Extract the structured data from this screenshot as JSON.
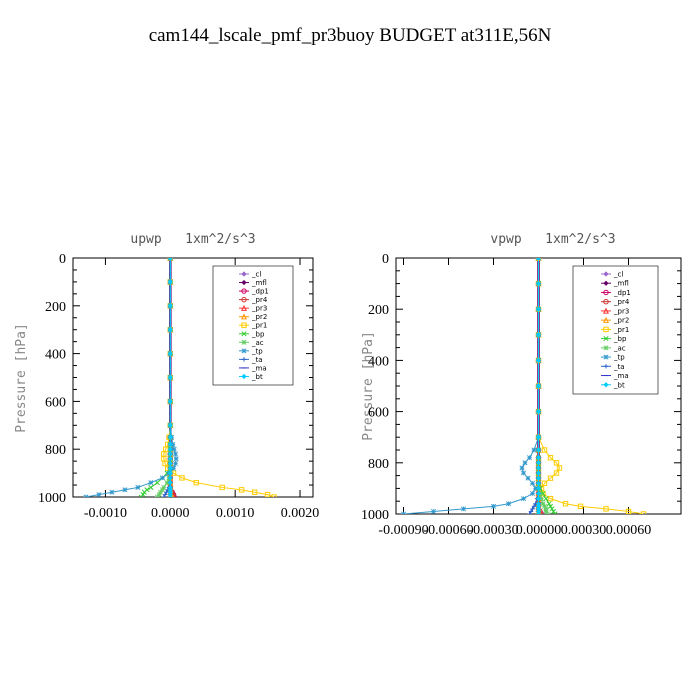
{
  "title": "cam144_lscale_pmf_pr3buoy  BUDGET at311E,56N",
  "chart_data": [
    {
      "type": "line",
      "title": "upwp   1xm^2/s^3",
      "ylabel": "Pressure [hPa]",
      "ylim": [
        0,
        1000
      ],
      "y_inverted": true,
      "xlim": [
        -0.0015,
        0.0022
      ],
      "xticks": [
        -0.001,
        0,
        0.001,
        0.002
      ],
      "xtick_labels": [
        "-0.0010",
        "0.0000",
        "0.0010",
        "0.0020"
      ],
      "yticks": [
        0,
        200,
        400,
        600,
        800,
        1000
      ],
      "ytick_labels": [
        "0",
        "200",
        "400",
        "600",
        "800",
        "1000"
      ],
      "legend_position": "top-right",
      "y": [
        0,
        100,
        200,
        300,
        400,
        500,
        600,
        700,
        750,
        780,
        800,
        820,
        840,
        860,
        880,
        900,
        920,
        940,
        960,
        970,
        980,
        990,
        1000
      ],
      "series": [
        {
          "name": "_cl",
          "color": "#9966cc",
          "marker": "diamond",
          "values": [
            0,
            0,
            0,
            0,
            0,
            0,
            0,
            0,
            0,
            0,
            0,
            0,
            0,
            0,
            0,
            0,
            0,
            0,
            0,
            0,
            0,
            0,
            0
          ]
        },
        {
          "name": "_mfl",
          "color": "#660066",
          "marker": "diamond",
          "values": [
            0,
            0,
            0,
            0,
            0,
            0,
            0,
            0,
            0,
            0,
            0,
            0,
            0,
            0,
            0,
            0,
            0,
            0,
            0,
            0,
            0,
            0,
            0
          ]
        },
        {
          "name": "_dp1",
          "color": "#cc0066",
          "marker": "circle",
          "values": [
            0,
            0,
            0,
            0,
            0,
            0,
            0,
            0,
            0,
            0,
            0,
            0,
            0,
            0,
            0,
            0,
            0,
            0,
            0,
            0,
            3e-05,
            5e-05,
            6e-05
          ]
        },
        {
          "name": "_pr4",
          "color": "#cc3333",
          "marker": "circle",
          "values": [
            0,
            0,
            0,
            0,
            0,
            0,
            0,
            0,
            0,
            0,
            0,
            0,
            0,
            0,
            0,
            0,
            0,
            0,
            0,
            0,
            2e-05,
            4e-05,
            5e-05
          ]
        },
        {
          "name": "_pr3",
          "color": "#ff3333",
          "marker": "triangle",
          "values": [
            0,
            0,
            0,
            0,
            0,
            0,
            0,
            0,
            0,
            0,
            0,
            0,
            0,
            0,
            0,
            0,
            0,
            0,
            0,
            0,
            0,
            2e-05,
            3e-05
          ]
        },
        {
          "name": "_pr2",
          "color": "#ff9900",
          "marker": "triangle",
          "values": [
            0,
            0,
            0,
            0,
            0,
            0,
            0,
            0,
            0,
            0,
            0,
            0,
            0,
            0,
            0,
            0,
            0,
            0,
            0,
            0,
            0,
            2e-05,
            3e-05
          ]
        },
        {
          "name": "_pr1",
          "color": "#ffcc00",
          "marker": "square",
          "values": [
            0,
            0,
            0,
            0,
            0,
            0,
            0,
            0,
            -2e-05,
            -4e-05,
            -7e-05,
            -0.0001,
            -0.0001,
            -8e-05,
            -4e-05,
            5e-05,
            0.00018,
            0.0004,
            0.0008,
            0.0011,
            0.0013,
            0.0015,
            0.0016
          ]
        },
        {
          "name": "_bp",
          "color": "#33cc33",
          "marker": "x",
          "values": [
            0,
            0,
            0,
            0,
            0,
            0,
            0,
            0,
            0,
            0,
            0,
            0,
            0,
            0,
            0,
            -5e-05,
            -0.00012,
            -0.0002,
            -0.0003,
            -0.00036,
            -0.0004,
            -0.00042,
            -0.00045
          ]
        },
        {
          "name": "_ac",
          "color": "#66cc66",
          "marker": "star",
          "values": [
            0,
            0,
            0,
            0,
            0,
            0,
            0,
            0,
            0,
            0,
            0,
            0,
            0,
            0,
            0,
            0,
            -2e-05,
            -5e-05,
            -0.0001,
            -0.00012,
            -0.00015,
            -0.00017,
            -0.0002
          ]
        },
        {
          "name": "_tp",
          "color": "#3399cc",
          "marker": "star",
          "values": [
            0,
            0,
            0,
            0,
            0,
            0,
            0,
            0,
            2e-05,
            4e-05,
            6e-05,
            8e-05,
            9e-05,
            8e-05,
            5e-05,
            -2e-05,
            -0.00012,
            -0.0003,
            -0.0005,
            -0.0007,
            -0.0009,
            -0.0011,
            -0.0013
          ]
        },
        {
          "name": "_ta",
          "color": "#3366cc",
          "marker": "plus",
          "values": [
            0,
            0,
            0,
            0,
            0,
            0,
            0,
            0,
            0,
            0,
            0,
            0,
            0,
            0,
            0,
            0,
            0,
            0,
            -2e-05,
            -4e-05,
            -6e-05,
            -8e-05,
            -0.0001
          ]
        },
        {
          "name": "_ma",
          "color": "#3333cc",
          "marker": "dash",
          "values": [
            0,
            0,
            0,
            0,
            0,
            0,
            0,
            0,
            0,
            0,
            0,
            0,
            0,
            0,
            0,
            0,
            0,
            0,
            0,
            0,
            0,
            0,
            0
          ]
        },
        {
          "name": "_bt",
          "color": "#00ccff",
          "marker": "diamond",
          "values": [
            0,
            0,
            0,
            0,
            0,
            0,
            0,
            0,
            0,
            0,
            0,
            0,
            0,
            0,
            0,
            0,
            0,
            0,
            0,
            0,
            0,
            0,
            0
          ]
        }
      ]
    },
    {
      "type": "line",
      "title": "vpwp   1xm^2/s^3",
      "ylabel": "Pressure [hPa]",
      "ylim": [
        0,
        1000
      ],
      "y_inverted": true,
      "xlim": [
        -0.00095,
        0.00095
      ],
      "xticks": [
        -0.0009,
        -0.0006,
        -0.0003,
        0,
        0.0003,
        0.0006
      ],
      "xtick_labels": [
        "-0.00090",
        "-0.00060",
        "-0.00030",
        "0.00000",
        "0.00030",
        "0.00060"
      ],
      "yticks": [
        0,
        200,
        400,
        600,
        800,
        1000
      ],
      "ytick_labels": [
        "0",
        "200",
        "400",
        "600",
        "800",
        "1000"
      ],
      "legend_position": "top-right",
      "y": [
        0,
        100,
        200,
        300,
        400,
        500,
        600,
        700,
        750,
        780,
        800,
        820,
        840,
        860,
        880,
        900,
        920,
        940,
        960,
        970,
        980,
        990,
        1000
      ],
      "series": [
        {
          "name": "_cl",
          "color": "#9966cc",
          "marker": "diamond",
          "values": [
            0,
            0,
            0,
            0,
            0,
            0,
            0,
            0,
            0,
            0,
            0,
            0,
            0,
            0,
            0,
            0,
            0,
            0,
            0,
            0,
            0,
            0,
            0
          ]
        },
        {
          "name": "_mfl",
          "color": "#660066",
          "marker": "diamond",
          "values": [
            0,
            0,
            0,
            0,
            0,
            0,
            0,
            0,
            0,
            0,
            0,
            0,
            0,
            0,
            0,
            0,
            0,
            0,
            0,
            0,
            0,
            0,
            0
          ]
        },
        {
          "name": "_dp1",
          "color": "#cc0066",
          "marker": "circle",
          "values": [
            0,
            0,
            0,
            0,
            0,
            0,
            0,
            0,
            0,
            0,
            0,
            0,
            0,
            0,
            0,
            0,
            0,
            0,
            0,
            0,
            0,
            1e-05,
            2e-05
          ]
        },
        {
          "name": "_pr4",
          "color": "#cc3333",
          "marker": "circle",
          "values": [
            0,
            0,
            0,
            0,
            0,
            0,
            0,
            0,
            0,
            0,
            0,
            0,
            0,
            0,
            0,
            0,
            0,
            0,
            0,
            0,
            0,
            1e-05,
            1e-05
          ]
        },
        {
          "name": "_pr3",
          "color": "#ff3333",
          "marker": "triangle",
          "values": [
            0,
            0,
            0,
            0,
            0,
            0,
            0,
            0,
            0,
            0,
            0,
            0,
            0,
            0,
            0,
            0,
            0,
            0,
            0,
            0,
            0,
            0,
            1e-05
          ]
        },
        {
          "name": "_pr2",
          "color": "#ff9900",
          "marker": "triangle",
          "values": [
            0,
            0,
            0,
            0,
            0,
            0,
            0,
            0,
            0,
            0,
            0,
            0,
            0,
            0,
            0,
            0,
            0,
            0,
            0,
            0,
            0,
            0,
            1e-05
          ]
        },
        {
          "name": "_pr1",
          "color": "#ffcc00",
          "marker": "square",
          "values": [
            0,
            0,
            0,
            0,
            0,
            0,
            0,
            0,
            4e-05,
            8e-05,
            0.00012,
            0.00014,
            0.00012,
            8e-05,
            4e-05,
            2e-05,
            3e-05,
            8e-05,
            0.00018,
            0.00028,
            0.00045,
            0.0006,
            0.0007
          ]
        },
        {
          "name": "_bp",
          "color": "#33cc33",
          "marker": "x",
          "values": [
            0,
            0,
            0,
            0,
            0,
            0,
            0,
            0,
            0,
            0,
            0,
            0,
            0,
            0,
            0,
            1e-05,
            3e-05,
            5e-05,
            7e-05,
            8e-05,
            9e-05,
            0.0001,
            0.00011
          ]
        },
        {
          "name": "_ac",
          "color": "#66cc66",
          "marker": "star",
          "values": [
            0,
            0,
            0,
            0,
            0,
            0,
            0,
            0,
            0,
            0,
            0,
            0,
            0,
            0,
            0,
            0,
            1e-05,
            2e-05,
            3e-05,
            4e-05,
            5e-05,
            5e-05,
            6e-05
          ]
        },
        {
          "name": "_tp",
          "color": "#3399cc",
          "marker": "star",
          "values": [
            0,
            0,
            0,
            0,
            0,
            0,
            0,
            0,
            -3e-05,
            -6e-05,
            -9e-05,
            -0.00011,
            -0.0001,
            -7e-05,
            -4e-05,
            -2e-05,
            -4e-05,
            -0.0001,
            -0.0002,
            -0.0003,
            -0.0005,
            -0.0007,
            -0.0009
          ]
        },
        {
          "name": "_ta",
          "color": "#3366cc",
          "marker": "plus",
          "values": [
            0,
            0,
            0,
            0,
            0,
            0,
            0,
            0,
            0,
            0,
            0,
            0,
            0,
            0,
            0,
            0,
            0,
            -1e-05,
            -2e-05,
            -3e-05,
            -4e-05,
            -5e-05,
            -6e-05
          ]
        },
        {
          "name": "_ma",
          "color": "#3333cc",
          "marker": "dash",
          "values": [
            0,
            0,
            0,
            0,
            0,
            0,
            0,
            0,
            0,
            0,
            0,
            0,
            0,
            0,
            0,
            0,
            0,
            0,
            0,
            0,
            0,
            0,
            0
          ]
        },
        {
          "name": "_bt",
          "color": "#00ccff",
          "marker": "diamond",
          "values": [
            0,
            0,
            0,
            0,
            0,
            0,
            0,
            0,
            0,
            0,
            0,
            0,
            0,
            0,
            0,
            0,
            0,
            0,
            0,
            0,
            0,
            0,
            0
          ]
        }
      ]
    }
  ]
}
